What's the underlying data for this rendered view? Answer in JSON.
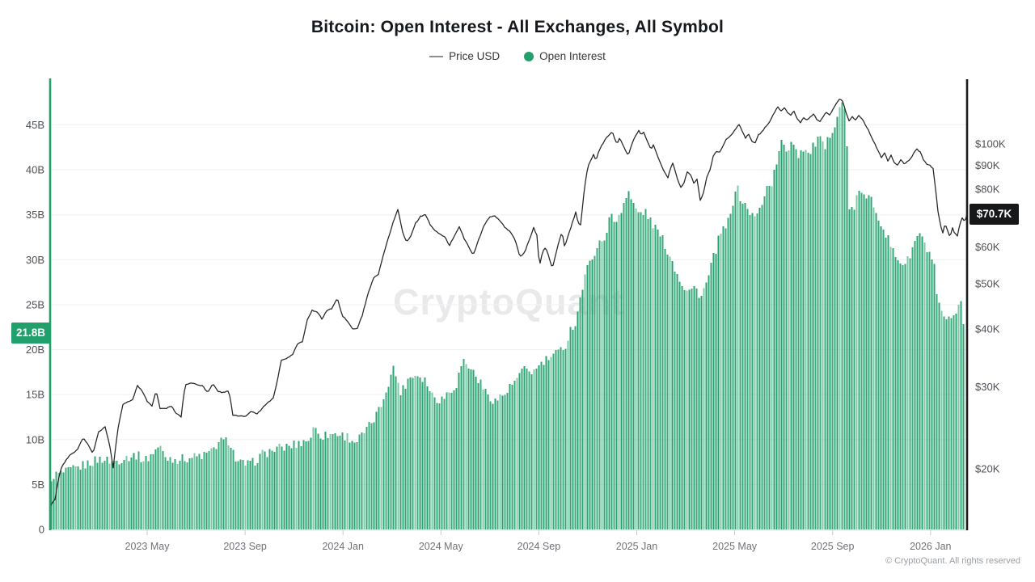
{
  "header": {
    "title": "Bitcoin: Open Interest - All Exchanges, All Symbol",
    "legend": [
      {
        "label": "Price USD",
        "marker": "line",
        "color": "#8a8f94"
      },
      {
        "label": "Open Interest",
        "marker": "dot",
        "color": "#21a06c"
      }
    ]
  },
  "watermark": "CryptoQuant",
  "footer": {
    "copyright": "© CryptoQuant. All rights reserved"
  },
  "chart_data": {
    "type": "bar+line",
    "title": "Bitcoin: Open Interest - All Exchanges, All Symbol",
    "legend_position": "top",
    "grid": "horizontal",
    "colors": {
      "bars": "#21a06c",
      "bars_light": "#57bb90",
      "line": "#222426",
      "grid": "#f2f2f4",
      "left_axis_line": "#21a06c",
      "right_axis_line": "#1a1c1e"
    },
    "x_axis": {
      "labels": [
        "2023 May",
        "2023 Sep",
        "2024 Jan",
        "2024 May",
        "2024 Sep",
        "2025 Jan",
        "2025 May",
        "2025 Sep",
        "2026 Jan"
      ]
    },
    "left_axis": {
      "name": "Open Interest",
      "unit": "billions USD",
      "scale": "linear",
      "tick_labels": [
        "0",
        "5B",
        "10B",
        "15B",
        "20B",
        "25B",
        "30B",
        "35B",
        "40B",
        "45B"
      ],
      "tick_values": [
        0,
        5,
        10,
        15,
        20,
        25,
        30,
        35,
        40,
        45
      ],
      "current_label": "21.8B",
      "current_value": 21.8
    },
    "right_axis": {
      "name": "Price USD",
      "unit": "thousands USD",
      "scale": "log",
      "tick_labels": [
        "$20K",
        "$30K",
        "$40K",
        "$50K",
        "$60K",
        "$80K",
        "$90K",
        "$100K"
      ],
      "tick_values": [
        20,
        30,
        40,
        50,
        60,
        80,
        90,
        100
      ],
      "current_label": "$70.7K",
      "current_value": 70.7
    },
    "series": [
      {
        "name": "Open Interest",
        "type": "bar",
        "axis": "left",
        "unit": "B",
        "t": [
          62,
          64,
          80,
          95,
          110,
          125,
          140,
          155,
          168,
          180,
          193,
          197,
          205,
          220,
          235,
          250,
          262,
          270,
          284,
          293,
          310,
          325,
          340,
          355,
          370,
          383,
          389,
          398,
          415,
          430,
          440,
          455,
          470,
          480,
          487,
          496,
          505,
          515,
          525,
          535,
          545,
          555,
          565,
          572,
          580,
          590,
          600,
          612,
          625,
          638,
          650,
          660,
          668,
          678,
          690,
          700,
          706,
          712,
          718,
          725,
          733,
          740,
          748,
          755,
          762,
          770,
          777,
          783,
          790,
          797,
          803,
          810,
          817,
          823,
          830,
          837,
          845,
          853,
          860,
          867,
          875,
          882,
          890,
          897,
          903,
          910,
          917,
          925,
          933,
          940,
          947,
          955,
          960,
          967,
          974,
          980,
          987,
          994,
          1000,
          1006,
          1013,
          1020,
          1027,
          1034,
          1040,
          1046,
          1050,
          1056,
          1063,
          1070,
          1077,
          1083,
          1090,
          1097,
          1103,
          1110,
          1117,
          1123,
          1130,
          1137,
          1143,
          1150,
          1155,
          1158,
          1163,
          1170,
          1177,
          1183,
          1188,
          1192,
          1196
        ],
        "values": [
          2.0,
          6.0,
          6.3,
          6.8,
          7.4,
          7.9,
          7.5,
          8.0,
          8.3,
          7.7,
          8.9,
          9.3,
          8.0,
          7.8,
          8.0,
          8.2,
          8.6,
          9.7,
          9.9,
          7.4,
          7.2,
          8.4,
          8.9,
          9.2,
          9.6,
          10.1,
          11.4,
          10.4,
          10.7,
          10.3,
          9.7,
          11.2,
          13.4,
          16.3,
          18.0,
          15.2,
          16.8,
          17.3,
          16.8,
          14.9,
          14.4,
          15.3,
          16.2,
          18.9,
          18.1,
          17.0,
          15.3,
          14.3,
          15.1,
          16.6,
          17.9,
          17.5,
          18.3,
          19.0,
          19.6,
          20.6,
          22.4,
          23.0,
          26.0,
          28.6,
          30.6,
          31.5,
          32.6,
          34.9,
          34.1,
          36.1,
          37.6,
          36.1,
          35.1,
          35.4,
          34.6,
          33.6,
          32.6,
          31.6,
          30.1,
          28.6,
          27.1,
          26.6,
          26.9,
          25.9,
          27.6,
          30.1,
          32.6,
          33.6,
          34.6,
          38.3,
          36.6,
          35.6,
          34.6,
          35.6,
          37.9,
          38.6,
          40.6,
          43.1,
          42.1,
          43.6,
          41.6,
          42.6,
          41.6,
          42.6,
          43.6,
          42.1,
          44.1,
          45.6,
          47.5,
          46.4,
          36.1,
          35.1,
          38.2,
          36.6,
          36.9,
          35.6,
          34.1,
          32.6,
          31.1,
          30.1,
          29.6,
          29.9,
          31.6,
          33.1,
          31.6,
          30.6,
          29.6,
          26.1,
          24.1,
          23.3,
          23.1,
          23.6,
          26.2,
          22.6,
          21.8
        ]
      },
      {
        "name": "Price USD",
        "type": "line",
        "axis": "right",
        "unit": "K",
        "t": [
          62,
          68,
          75,
          85,
          95,
          103,
          110,
          115,
          122,
          130,
          136,
          140,
          146,
          152,
          158,
          164,
          170,
          176,
          182,
          188,
          193,
          198,
          205,
          212,
          218,
          224,
          229,
          236,
          243,
          250,
          257,
          263,
          270,
          277,
          283,
          288,
          295,
          303,
          310,
          318,
          325,
          332,
          338,
          343,
          348,
          355,
          362,
          368,
          374,
          380,
          386,
          393,
          398,
          404,
          410,
          417,
          423,
          430,
          436,
          442,
          448,
          455,
          462,
          468,
          474,
          480,
          487,
          492,
          498,
          503,
          508,
          514,
          520,
          526,
          532,
          538,
          544,
          550,
          556,
          562,
          568,
          574,
          580,
          585,
          591,
          598,
          605,
          612,
          618,
          625,
          632,
          638,
          643,
          649,
          655,
          660,
          664,
          667,
          671,
          675,
          679,
          683,
          687,
          691,
          695,
          698,
          701,
          704,
          707,
          710,
          712,
          714,
          716,
          718,
          720,
          722,
          724,
          726,
          728,
          731,
          734,
          737,
          740,
          743,
          746,
          749,
          752,
          755,
          757,
          760,
          763,
          766,
          769,
          772,
          775,
          777,
          780,
          783,
          786,
          790,
          793,
          796,
          799,
          802,
          805,
          808,
          811,
          814,
          817,
          820,
          823,
          826,
          829,
          832,
          835,
          838,
          842,
          846,
          850,
          854,
          858,
          862,
          866,
          870,
          874,
          878,
          882,
          886,
          890,
          894,
          898,
          902,
          906,
          910,
          914,
          918,
          922,
          926,
          930,
          934,
          938,
          942,
          946,
          950,
          954,
          958,
          962,
          966,
          970,
          974,
          978,
          982,
          986,
          990,
          994,
          998,
          1002,
          1006,
          1010,
          1014,
          1018,
          1022,
          1026,
          1030,
          1034,
          1038,
          1042,
          1046,
          1050,
          1054,
          1058,
          1062,
          1066,
          1070,
          1074,
          1078,
          1082,
          1086,
          1090,
          1094,
          1098,
          1102,
          1106,
          1110,
          1114,
          1118,
          1122,
          1126,
          1130,
          1134,
          1138,
          1142,
          1146,
          1150,
          1154,
          1157,
          1160,
          1163,
          1166,
          1169,
          1172,
          1175,
          1178,
          1181,
          1184,
          1187,
          1190,
          1193,
          1196
        ],
        "values": [
          16.6,
          17.2,
          20.0,
          21.3,
          21.9,
          23.3,
          22.4,
          21.6,
          24.0,
          24.6,
          22.3,
          20.1,
          24.5,
          27.5,
          27.9,
          28.2,
          30.2,
          29.4,
          28.0,
          27.3,
          29.4,
          27.0,
          26.9,
          27.3,
          26.3,
          25.9,
          30.3,
          30.6,
          30.4,
          30.2,
          29.2,
          30.5,
          29.3,
          29.2,
          29.5,
          26.1,
          26.0,
          25.9,
          26.6,
          26.2,
          27.1,
          27.8,
          28.4,
          31.0,
          34.3,
          34.6,
          35.2,
          37.1,
          37.5,
          41.8,
          43.9,
          43.5,
          41.9,
          43.8,
          44.2,
          46.6,
          42.8,
          41.5,
          40.0,
          40.1,
          42.8,
          47.5,
          51.5,
          52.5,
          57.5,
          62.5,
          68.5,
          72.3,
          64.5,
          61.5,
          63.5,
          67.5,
          69.8,
          70.5,
          67.0,
          65.0,
          64.0,
          63.0,
          60.5,
          63.5,
          66.5,
          62.5,
          60.0,
          57.5,
          61.5,
          66.5,
          69.5,
          70.0,
          68.5,
          66.0,
          64.5,
          61.5,
          57.0,
          58.5,
          62.5,
          66.0,
          63.5,
          54.5,
          58.5,
          60.0,
          57.0,
          53.8,
          57.5,
          61.5,
          64.5,
          60.5,
          62.0,
          64.5,
          67.0,
          69.5,
          71.5,
          69.0,
          67.5,
          67.0,
          72.0,
          78.0,
          83.0,
          87.0,
          90.0,
          92.5,
          95.0,
          92.0,
          96.0,
          98.5,
          100.5,
          102.5,
          104.0,
          105.5,
          106.5,
          103.0,
          99.5,
          103.0,
          101.0,
          98.0,
          96.0,
          94.5,
          98.0,
          101.5,
          104.0,
          107.0,
          104.5,
          106.0,
          102.5,
          100.0,
          97.5,
          99.5,
          96.5,
          93.5,
          91.0,
          88.0,
          86.5,
          84.5,
          88.5,
          91.0,
          87.5,
          84.0,
          80.5,
          82.5,
          87.0,
          86.0,
          82.5,
          84.0,
          75.5,
          78.5,
          84.5,
          88.0,
          94.0,
          96.5,
          96.0,
          99.0,
          102.5,
          103.5,
          105.5,
          108.0,
          110.0,
          106.5,
          103.0,
          105.0,
          101.5,
          100.5,
          104.5,
          106.0,
          108.5,
          110.5,
          113.5,
          117.0,
          120.0,
          118.0,
          119.5,
          117.0,
          115.5,
          117.5,
          113.5,
          111.0,
          114.0,
          112.5,
          114.5,
          116.0,
          113.0,
          111.5,
          114.5,
          117.0,
          115.5,
          118.5,
          122.0,
          125.0,
          123.5,
          117.5,
          112.0,
          114.5,
          112.5,
          115.0,
          113.5,
          110.0,
          107.0,
          103.5,
          100.0,
          96.5,
          93.5,
          95.5,
          92.0,
          94.5,
          91.0,
          90.0,
          92.5,
          90.5,
          91.5,
          93.0,
          95.5,
          97.5,
          96.0,
          92.5,
          90.5,
          90.0,
          88.5,
          80.0,
          71.5,
          67.0,
          64.5,
          67.5,
          65.0,
          63.0,
          66.0,
          64.0,
          63.5,
          67.0,
          69.5,
          68.0,
          70.7
        ]
      }
    ]
  }
}
